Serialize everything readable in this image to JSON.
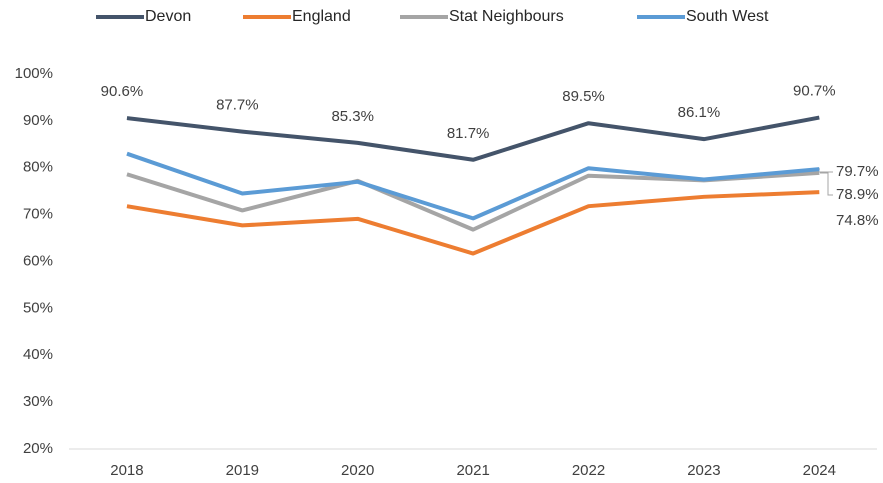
{
  "chart_data": {
    "type": "line",
    "categories": [
      "2018",
      "2019",
      "2020",
      "2021",
      "2022",
      "2023",
      "2024"
    ],
    "series": [
      {
        "name": "Devon",
        "color": "#44546a",
        "values": [
          90.6,
          87.7,
          85.3,
          81.7,
          89.5,
          86.1,
          90.7
        ],
        "value_labels": [
          "90.6%",
          "87.7%",
          "85.3%",
          "81.7%",
          "89.5%",
          "86.1%",
          "90.7%"
        ]
      },
      {
        "name": "England",
        "color": "#ed7d31",
        "values": [
          71.8,
          67.7,
          69.1,
          61.7,
          71.8,
          73.8,
          74.8
        ],
        "value_labels": [
          null,
          null,
          null,
          null,
          null,
          null,
          "74.8%"
        ]
      },
      {
        "name": "Stat Neighbours",
        "color": "#a5a5a5",
        "values": [
          78.6,
          70.9,
          77.2,
          66.8,
          78.3,
          77.3,
          78.9
        ],
        "value_labels": [
          null,
          null,
          null,
          null,
          null,
          null,
          "78.9%"
        ]
      },
      {
        "name": "South West",
        "color": "#5b9bd5",
        "values": [
          83.0,
          74.5,
          77.0,
          69.2,
          79.9,
          77.5,
          79.7
        ],
        "value_labels": [
          null,
          null,
          null,
          null,
          null,
          null,
          "79.7%"
        ]
      }
    ],
    "ylim": [
      20,
      100
    ],
    "yticks": [
      {
        "value": 20,
        "label": "20%"
      },
      {
        "value": 30,
        "label": "30%"
      },
      {
        "value": 40,
        "label": "40%"
      },
      {
        "value": 50,
        "label": "50%"
      },
      {
        "value": 60,
        "label": "60%"
      },
      {
        "value": 70,
        "label": "70%"
      },
      {
        "value": 80,
        "label": "80%"
      },
      {
        "value": 90,
        "label": "90%"
      },
      {
        "value": 100,
        "label": "100%"
      }
    ],
    "grid": false,
    "legend": "top"
  }
}
